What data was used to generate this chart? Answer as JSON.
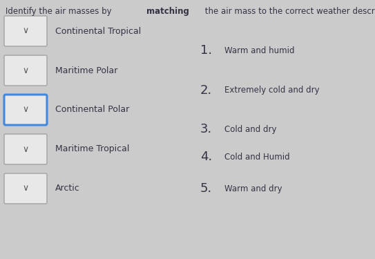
{
  "background_color": "#cbcbcb",
  "title_normal1": "Identify the air masses by ",
  "title_bold": "matching",
  "title_normal2": " the air mass to the correct weather description.",
  "air_masses": [
    {
      "label": "Continental Tropical",
      "row": 0,
      "border_color": "#aaaaaa",
      "border_lw": 1.2
    },
    {
      "label": "Maritime Polar",
      "row": 1,
      "border_color": "#aaaaaa",
      "border_lw": 1.2
    },
    {
      "label": "Continental Polar",
      "row": 2,
      "border_color": "#4488dd",
      "border_lw": 2.2
    },
    {
      "label": "Maritime Tropical",
      "row": 3,
      "border_color": "#aaaaaa",
      "border_lw": 1.2
    },
    {
      "label": "Arctic",
      "row": 4,
      "border_color": "#aaaaaa",
      "border_lw": 1.2
    }
  ],
  "descriptions": [
    {
      "number": "1.",
      "text": "Warm and humid",
      "row": 0.5
    },
    {
      "number": "2.",
      "text": "Extremely cold and dry",
      "row": 1.5
    },
    {
      "number": "3.",
      "text": "Cold and dry",
      "row": 2.5
    },
    {
      "number": "4.",
      "text": "Cold and Humid",
      "row": 3.2
    },
    {
      "number": "5.",
      "text": "Warm and dry",
      "row": 4.0
    }
  ],
  "box_face": "#e8e8e8",
  "text_color": "#333344",
  "font_size_title": 8.5,
  "font_size_label": 9.0,
  "font_size_num": 13,
  "font_size_desc": 8.5
}
